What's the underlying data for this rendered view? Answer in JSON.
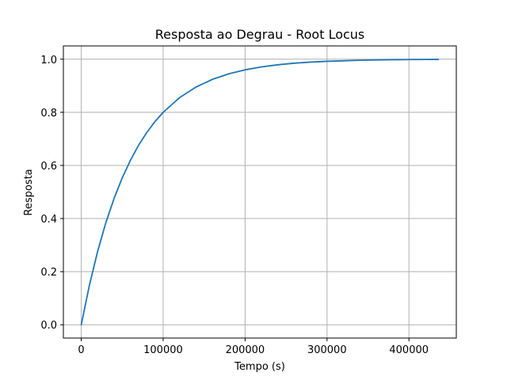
{
  "chart_data": {
    "type": "line",
    "title": "Resposta ao Degrau - Root Locus",
    "xlabel": "Tempo (s)",
    "ylabel": "Resposta",
    "xlim": [
      -21800,
      457800
    ],
    "ylim": [
      -0.05,
      1.05
    ],
    "xticks": [
      0,
      100000,
      200000,
      300000,
      400000
    ],
    "xtick_labels": [
      "0",
      "100000",
      "200000",
      "300000",
      "400000"
    ],
    "yticks": [
      0.0,
      0.2,
      0.4,
      0.6,
      0.8,
      1.0
    ],
    "ytick_labels": [
      "0.0",
      "0.2",
      "0.4",
      "0.6",
      "0.8",
      "1.0"
    ],
    "grid": true,
    "series": [
      {
        "color": "#1f77b4",
        "x": [
          0,
          10000,
          20000,
          30000,
          40000,
          50000,
          60000,
          70000,
          80000,
          90000,
          100000,
          120000,
          140000,
          160000,
          180000,
          200000,
          220000,
          240000,
          260000,
          280000,
          300000,
          320000,
          340000,
          360000,
          380000,
          400000,
          420000,
          436000
        ],
        "y": [
          0.0,
          0.149,
          0.276,
          0.384,
          0.475,
          0.553,
          0.619,
          0.676,
          0.724,
          0.765,
          0.8,
          0.855,
          0.895,
          0.924,
          0.945,
          0.96,
          0.971,
          0.979,
          0.985,
          0.989,
          0.992,
          0.994,
          0.996,
          0.997,
          0.998,
          0.9985,
          0.999,
          0.9992
        ]
      }
    ]
  }
}
